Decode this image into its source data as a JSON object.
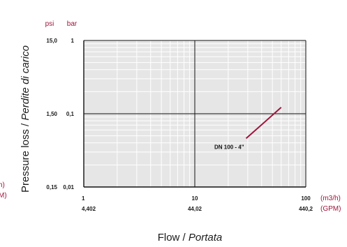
{
  "chart_data": {
    "type": "line",
    "x_scale": "log",
    "y_scale": "log",
    "xlim": [
      1,
      100
    ],
    "ylim": [
      0.01,
      1
    ],
    "grid": true,
    "x_ticks_primary": [
      {
        "value": 1,
        "label": "1"
      },
      {
        "value": 10,
        "label": "10"
      },
      {
        "value": 100,
        "label": "100"
      }
    ],
    "x_ticks_secondary": [
      {
        "value": 1,
        "label": "4,402"
      },
      {
        "value": 10,
        "label": "44,02"
      },
      {
        "value": 100,
        "label": "440,2"
      }
    ],
    "y_ticks_bar": [
      {
        "value": 1,
        "label": "1"
      },
      {
        "value": 0.1,
        "label": "0,1"
      },
      {
        "value": 0.01,
        "label": "0,01"
      }
    ],
    "y_ticks_psi": [
      {
        "value": 1,
        "label": "15,0"
      },
      {
        "value": 0.1,
        "label": "1,50"
      },
      {
        "value": 0.01,
        "label": "0,15"
      }
    ],
    "x_unit_primary": "(m3/h)",
    "x_unit_secondary": "(GPM)",
    "y_unit_left": "psi",
    "y_unit_right": "bar",
    "ylabel_main": "Pressure loss / ",
    "ylabel_italic": "Perdite di carico",
    "xlabel_main": "Flow / ",
    "xlabel_italic": "Portata",
    "left_cut_unit_top": "h)",
    "left_cut_unit_bottom": "M)",
    "series": [
      {
        "name": "DN 100 - 4\"",
        "color": "#a0143c",
        "x": [
          29,
          60
        ],
        "y": [
          0.046,
          0.122
        ]
      }
    ]
  },
  "colors": {
    "plot_bg": "#e6e6e6",
    "grid": "#ffffff",
    "axis": "#111111",
    "unit_accent": "#a0143c"
  }
}
